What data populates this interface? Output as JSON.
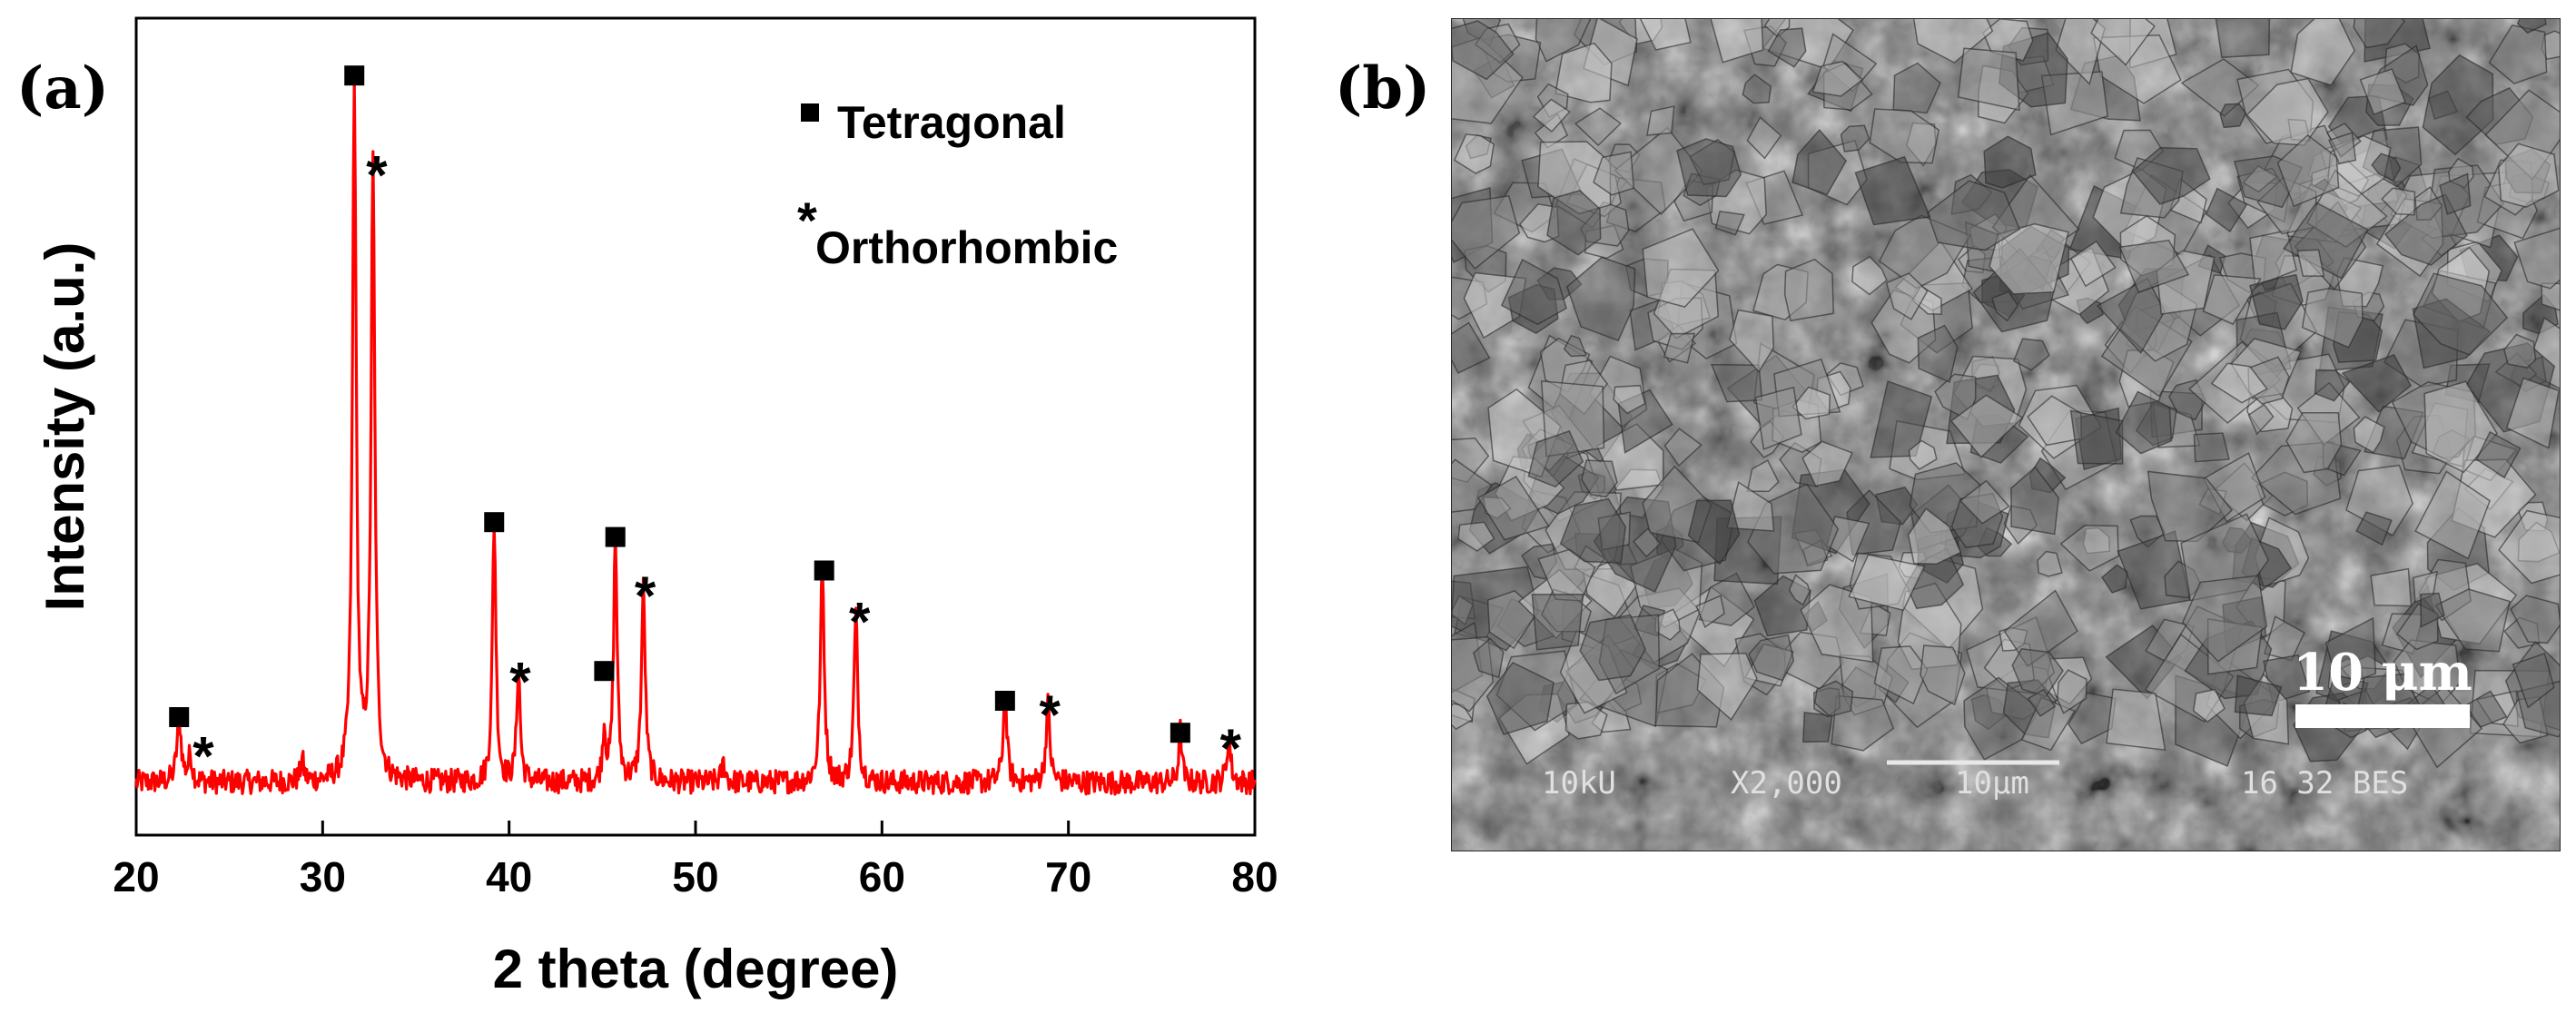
{
  "panels": {
    "a_label": "(a)",
    "b_label": "(b)"
  },
  "chart_data": {
    "type": "line",
    "title": "",
    "xlabel": "2 theta (degree)",
    "ylabel": "Intensity (a.u.)",
    "xlim": [
      20,
      80
    ],
    "ylim": [
      0,
      100
    ],
    "xticks": [
      20,
      30,
      40,
      50,
      60,
      70,
      80
    ],
    "grid": false,
    "series_color": "#ff0000",
    "baseline": 4,
    "peaks": [
      {
        "x": 22.3,
        "h": 8.5,
        "w": 0.35
      },
      {
        "x": 22.9,
        "h": 3.5,
        "w": 0.3
      },
      {
        "x": 28.9,
        "h": 3.0,
        "w": 0.25
      },
      {
        "x": 31.7,
        "h": 93.0,
        "w": 0.3
      },
      {
        "x": 32.7,
        "h": 82.5,
        "w": 0.3
      },
      {
        "x": 39.2,
        "h": 35.0,
        "w": 0.28
      },
      {
        "x": 40.5,
        "h": 15.0,
        "w": 0.28
      },
      {
        "x": 45.1,
        "h": 7.0,
        "w": 0.25
      },
      {
        "x": 45.7,
        "h": 33.0,
        "w": 0.28
      },
      {
        "x": 47.2,
        "h": 26.0,
        "w": 0.3
      },
      {
        "x": 51.5,
        "h": 2.5,
        "w": 0.3
      },
      {
        "x": 56.8,
        "h": 29.0,
        "w": 0.3
      },
      {
        "x": 58.6,
        "h": 22.5,
        "w": 0.3
      },
      {
        "x": 66.6,
        "h": 11.5,
        "w": 0.3
      },
      {
        "x": 68.9,
        "h": 10.5,
        "w": 0.3
      },
      {
        "x": 76.0,
        "h": 7.0,
        "w": 0.25
      },
      {
        "x": 78.6,
        "h": 6.0,
        "w": 0.3
      }
    ],
    "markers": [
      {
        "x": 22.3,
        "y": 12.8,
        "symbol": "■"
      },
      {
        "x": 23.6,
        "y": 8.5,
        "symbol": "*"
      },
      {
        "x": 31.7,
        "y": 99.0,
        "symbol": "■"
      },
      {
        "x": 32.9,
        "y": 86.5,
        "symbol": "*"
      },
      {
        "x": 39.2,
        "y": 39.0,
        "symbol": "■"
      },
      {
        "x": 40.6,
        "y": 18.5,
        "symbol": "*"
      },
      {
        "x": 45.1,
        "y": 19.0,
        "symbol": "■"
      },
      {
        "x": 45.7,
        "y": 37.0,
        "symbol": "■"
      },
      {
        "x": 47.3,
        "y": 30.0,
        "symbol": "*"
      },
      {
        "x": 56.9,
        "y": 32.5,
        "symbol": "■"
      },
      {
        "x": 58.8,
        "y": 26.5,
        "symbol": "*"
      },
      {
        "x": 66.6,
        "y": 15.0,
        "symbol": "■"
      },
      {
        "x": 69.0,
        "y": 14.0,
        "symbol": "*"
      },
      {
        "x": 76.0,
        "y": 10.7,
        "symbol": "■"
      },
      {
        "x": 78.7,
        "y": 9.5,
        "symbol": "*"
      }
    ],
    "legend": [
      {
        "symbol": "■",
        "label": "Tetragonal"
      },
      {
        "symbol": "*",
        "label": "Orthorhombic"
      }
    ]
  },
  "sem_image": {
    "scale_bar_label": "10 μm",
    "info_bar": {
      "voltage": "10kU",
      "magnification": "X2,000",
      "bar_text": "10μm",
      "id_text": "16 32 BES"
    }
  }
}
